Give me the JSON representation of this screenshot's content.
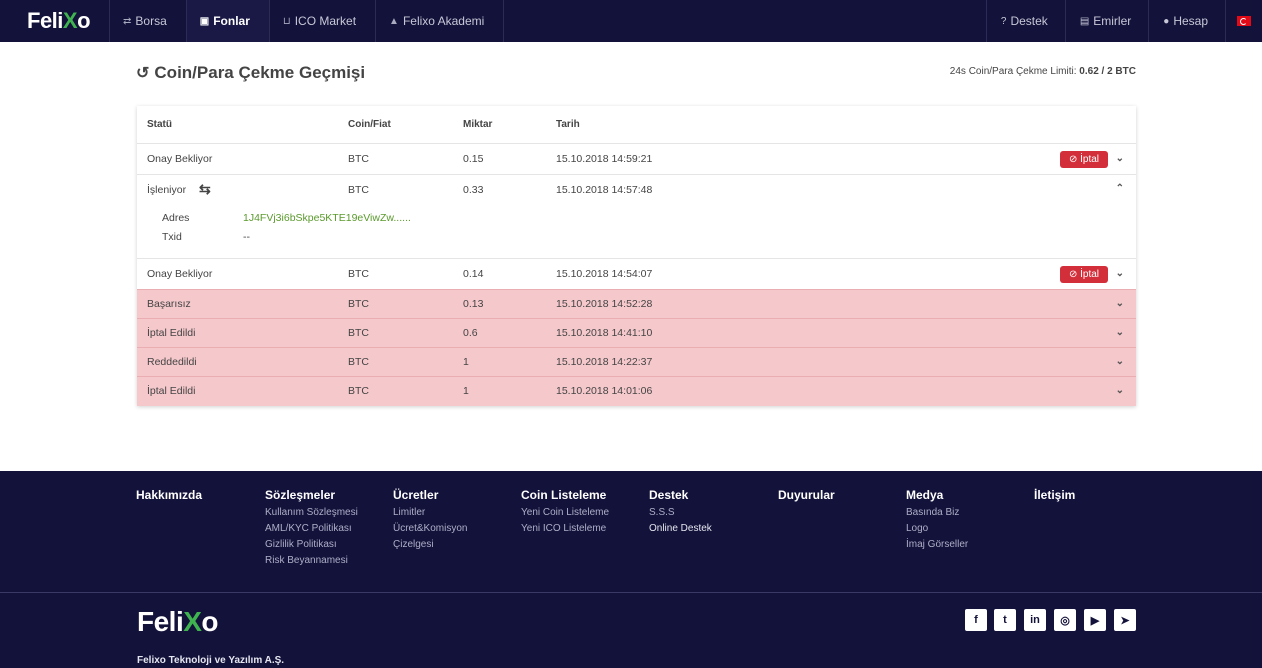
{
  "nav": {
    "logo_a": "Feli",
    "logo_x": "X",
    "logo_b": "o",
    "items": [
      {
        "label": "Borsa",
        "icon": "exchange-icon"
      },
      {
        "label": "Fonlar",
        "icon": "money-icon"
      },
      {
        "label": "ICO Market",
        "icon": "cart-icon"
      },
      {
        "label": "Felixo Akademi",
        "icon": "graduation-icon"
      }
    ],
    "right": [
      {
        "label": "Destek",
        "icon": "question-icon"
      },
      {
        "label": "Emirler",
        "icon": "document-icon"
      },
      {
        "label": "Hesap",
        "icon": "user-icon"
      }
    ]
  },
  "page": {
    "title": "Coin/Para Çekme Geçmişi",
    "limit_label": "24s Coin/Para Çekme Limiti: ",
    "limit_value": "0.62 / 2 BTC"
  },
  "table": {
    "headers": [
      "Statü",
      "Coin/Fiat",
      "Miktar",
      "Tarih"
    ],
    "cancel_label": "İptal",
    "rows": [
      {
        "status": "Onay Bekliyor",
        "coin": "BTC",
        "amount": "0.15",
        "date": "15.10.2018 14:59:21"
      },
      {
        "status": "İşleniyor",
        "coin": "BTC",
        "amount": "0.33",
        "date": "15.10.2018 14:57:48"
      },
      {
        "status": "Onay Bekliyor",
        "coin": "BTC",
        "amount": "0.14",
        "date": "15.10.2018 14:54:07"
      },
      {
        "status": "Başarısız",
        "coin": "BTC",
        "amount": "0.13",
        "date": "15.10.2018 14:52:28"
      },
      {
        "status": "İptal Edildi",
        "coin": "BTC",
        "amount": "0.6",
        "date": "15.10.2018 14:41:10"
      },
      {
        "status": "Reddedildi",
        "coin": "BTC",
        "amount": "1",
        "date": "15.10.2018 14:22:37"
      },
      {
        "status": "İptal Edildi",
        "coin": "BTC",
        "amount": "1",
        "date": "15.10.2018 14:01:06"
      }
    ],
    "detail": {
      "address_label": "Adres",
      "address_value": "1J4FVj3i6bSkpe5KTE19eViwZw......",
      "txid_label": "Txid",
      "txid_value": "--"
    }
  },
  "footer": {
    "columns": [
      {
        "title": "Hakkımızda",
        "links": []
      },
      {
        "title": "Sözleşmeler",
        "links": [
          "Kullanım Sözleşmesi",
          "AML/KYC Politikası",
          "Gizlilik Politikası",
          "Risk Beyannamesi"
        ]
      },
      {
        "title": "Ücretler",
        "links": [
          "Limitler",
          "Ücret&Komisyon",
          "Çizelgesi"
        ]
      },
      {
        "title": "Coin Listeleme",
        "links": [
          "Yeni Coin Listeleme",
          "Yeni ICO Listeleme"
        ]
      },
      {
        "title": "Destek",
        "links": [
          "S.S.S",
          "Online Destek"
        ]
      },
      {
        "title": "Duyurular",
        "links": []
      },
      {
        "title": "Medya",
        "links": [
          "Basında Biz",
          "Logo",
          "İmaj Görseller"
        ]
      },
      {
        "title": "İletişim",
        "links": []
      }
    ],
    "company": "Felixo Teknoloji ve Yazılım A.Ş.",
    "social": [
      "facebook-icon",
      "twitter-icon",
      "linkedin-icon",
      "instagram-icon",
      "youtube-icon",
      "telegram-icon"
    ]
  }
}
